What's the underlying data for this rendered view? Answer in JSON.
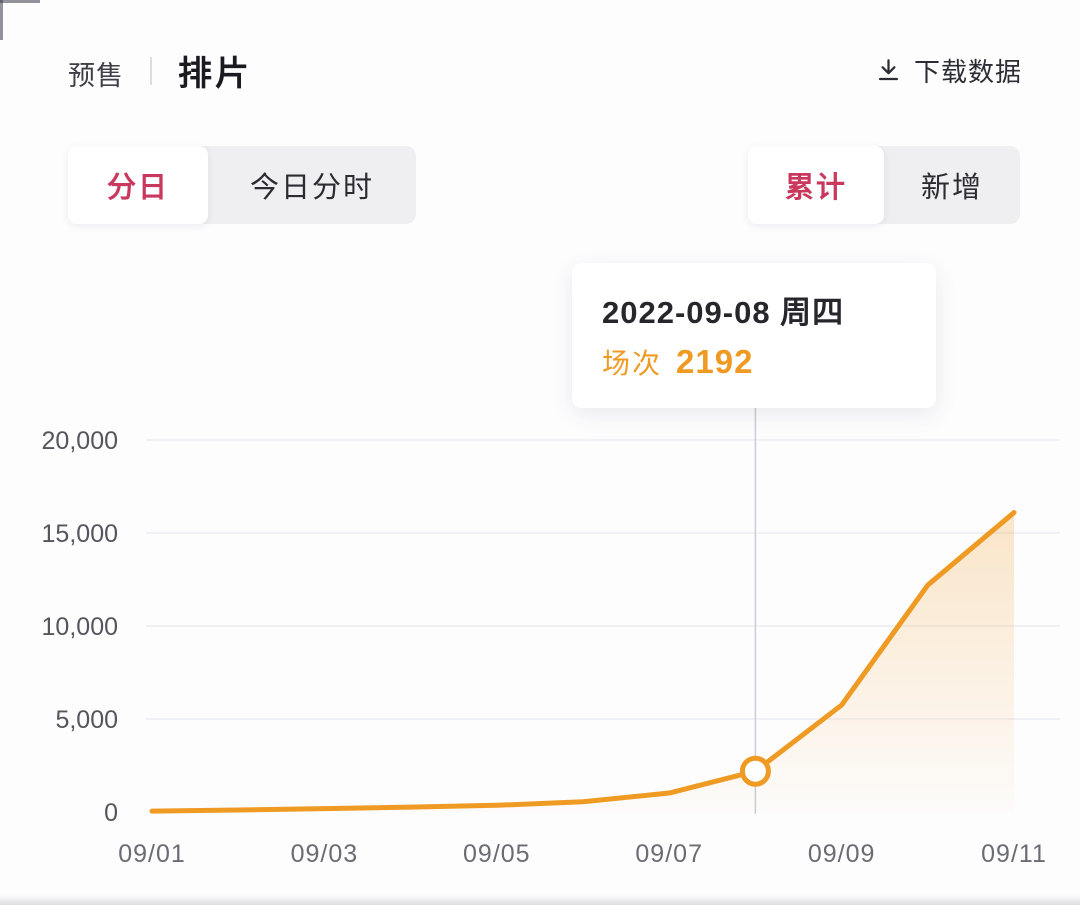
{
  "header": {
    "tabs": [
      {
        "label": "预售",
        "active": false
      },
      {
        "label": "排片",
        "active": true
      }
    ],
    "download": {
      "label": "下载数据",
      "icon": "download-icon"
    }
  },
  "controls": {
    "left": {
      "options": [
        {
          "label": "分日",
          "selected": true
        },
        {
          "label": "今日分时",
          "selected": false
        }
      ]
    },
    "right": {
      "options": [
        {
          "label": "累计",
          "selected": true
        },
        {
          "label": "新增",
          "selected": false
        }
      ]
    }
  },
  "tooltip": {
    "date": "2022-09-08 周四",
    "metric_label": "场次",
    "metric_value": "2192"
  },
  "colors": {
    "accent_red": "#c8395d",
    "accent_orange": "#ef9a23",
    "text_dark": "#26262c",
    "axis_text": "#55555d",
    "x_axis_text": "#6b6b74",
    "grid": "#f0f1f4",
    "guide_line": "#c9cdd6"
  },
  "chart_data": {
    "type": "area",
    "title": "排片 分日 累计 场次",
    "x": [
      "09/01",
      "09/02",
      "09/03",
      "09/04",
      "09/05",
      "09/06",
      "09/07",
      "09/08",
      "09/09",
      "09/10",
      "09/11"
    ],
    "series": [
      {
        "name": "场次(累计)",
        "values": [
          50,
          110,
          180,
          260,
          360,
          550,
          1020,
          2192,
          5750,
          12200,
          16100
        ]
      }
    ],
    "x_tick_labels": [
      "09/01",
      "09/03",
      "09/05",
      "09/07",
      "09/09",
      "09/11"
    ],
    "y_ticks": [
      0,
      5000,
      10000,
      15000,
      20000
    ],
    "y_tick_labels": [
      "0",
      "5,000",
      "10,000",
      "15,000",
      "20,000"
    ],
    "ylim": [
      0,
      20000
    ],
    "grid": true,
    "legend": "none",
    "line_color": "#ef9a23",
    "highlight": {
      "date": "09/08",
      "index": 7,
      "value": 2192,
      "weekday": "周四"
    }
  }
}
